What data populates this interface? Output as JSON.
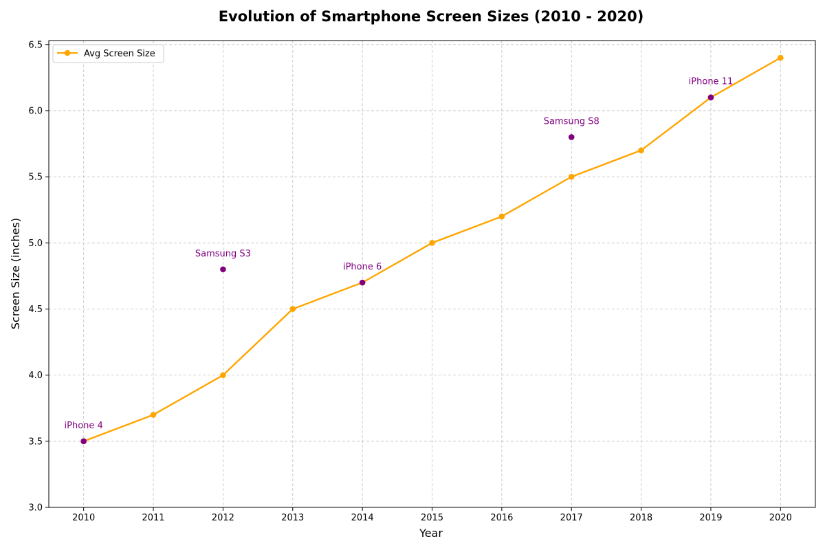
{
  "chart_data": {
    "type": "line",
    "title": "Evolution of Smartphone Screen Sizes (2010 - 2020)",
    "xlabel": "Year",
    "ylabel": "Screen Size (inches)",
    "x": [
      2010,
      2011,
      2012,
      2013,
      2014,
      2015,
      2016,
      2017,
      2018,
      2019,
      2020
    ],
    "xlim": [
      2009.5,
      2020.5
    ],
    "ylim": [
      3.0,
      6.53
    ],
    "yticks": [
      3.0,
      3.5,
      4.0,
      4.5,
      5.0,
      5.5,
      6.0,
      6.5
    ],
    "ytick_labels": [
      "3.0",
      "3.5",
      "4.0",
      "4.5",
      "5.0",
      "5.5",
      "6.0",
      "6.5"
    ],
    "xtick_labels": [
      "2010",
      "2011",
      "2012",
      "2013",
      "2014",
      "2015",
      "2016",
      "2017",
      "2018",
      "2019",
      "2020"
    ],
    "grid": true,
    "legend_position": "top-left",
    "series": [
      {
        "name": "Avg Screen Size",
        "color": "#FFA500",
        "values": [
          3.5,
          3.7,
          4.0,
          4.5,
          4.7,
          5.0,
          5.2,
          5.5,
          5.7,
          6.1,
          6.4
        ]
      }
    ],
    "annotations": [
      {
        "label": "iPhone 4",
        "x": 2010,
        "y": 3.5
      },
      {
        "label": "Samsung S3",
        "x": 2012,
        "y": 4.8
      },
      {
        "label": "iPhone 6",
        "x": 2014,
        "y": 4.7
      },
      {
        "label": "Samsung S8",
        "x": 2017,
        "y": 5.8
      },
      {
        "label": "iPhone 11",
        "x": 2019,
        "y": 6.1
      }
    ],
    "annotation_color": "#800080"
  }
}
